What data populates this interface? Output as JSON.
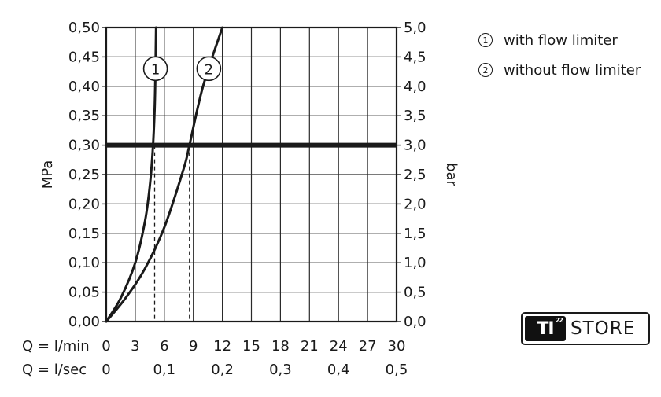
{
  "chart_data": {
    "type": "line",
    "x_rows": [
      {
        "label": "Q = l/min",
        "ticks": [
          "0",
          "3",
          "6",
          "9",
          "12",
          "15",
          "18",
          "21",
          "24",
          "27",
          "30"
        ]
      },
      {
        "label": "Q = l/sec",
        "ticks": [
          "0",
          "0,1",
          "0,2",
          "0,3",
          "0,4",
          "0,5"
        ]
      }
    ],
    "xlim": [
      0,
      30
    ],
    "y_left": {
      "label": "MPa",
      "ticks": [
        "0,00",
        "0,05",
        "0,10",
        "0,15",
        "0,20",
        "0,25",
        "0,30",
        "0,35",
        "0,40",
        "0,45",
        "0,50"
      ],
      "ylim": [
        0,
        0.5
      ]
    },
    "y_right": {
      "label": "bar",
      "ticks": [
        "0,0",
        "0,5",
        "1,0",
        "1,5",
        "2,0",
        "2,5",
        "3,0",
        "3,5",
        "4,0",
        "4,5",
        "5,0"
      ],
      "ylim": [
        0,
        5
      ]
    },
    "grid": true,
    "reference_line": {
      "y": 0.3
    },
    "series": [
      {
        "name": "with flow limiter",
        "marker": "1",
        "x": [
          0,
          1.5,
          3,
          4,
          4.5,
          4.8,
          5.0,
          5.1,
          5.15
        ],
        "y": [
          0,
          0.04,
          0.1,
          0.17,
          0.23,
          0.29,
          0.36,
          0.44,
          0.5
        ]
      },
      {
        "name": "without flow limiter",
        "marker": "2",
        "x": [
          0,
          2,
          4,
          6,
          8,
          8.6,
          10,
          12
        ],
        "y": [
          0,
          0.04,
          0.09,
          0.16,
          0.26,
          0.3,
          0.4,
          0.5
        ]
      }
    ],
    "drop_lines": [
      {
        "x": 5.0,
        "y": 0.3
      },
      {
        "x": 8.6,
        "y": 0.3
      }
    ]
  },
  "legend": {
    "items": [
      {
        "marker": "1",
        "label": "with flow limiter"
      },
      {
        "marker": "2",
        "label": "without flow limiter"
      }
    ]
  },
  "watermark": {
    "logo_text": "TI",
    "logo_sup": "22",
    "text": "STORE"
  }
}
